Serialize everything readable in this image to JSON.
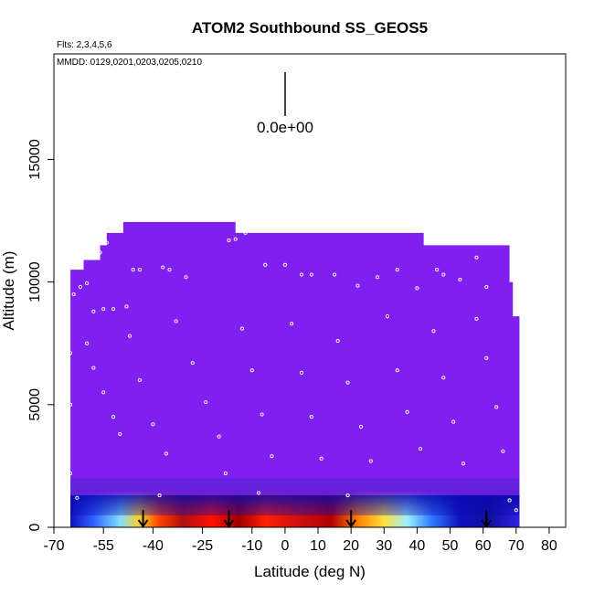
{
  "chart_data": {
    "type": "heatmap",
    "title": "ATOM2 Southbound SS_GEOS5",
    "flights_note": "Flts: 2,3,4,5,6",
    "date_note": "MMDD: 0129,0201,0203,0205,0210",
    "scale_label": "0.0e+00",
    "xlabel": "Latitude (deg N)",
    "ylabel": "Altitude (m)",
    "xlim": [
      -70,
      85
    ],
    "ylim": [
      0,
      19300
    ],
    "x_ticks": [
      -70,
      -55,
      -40,
      -25,
      -10,
      0,
      10,
      20,
      30,
      40,
      50,
      60,
      70,
      80
    ],
    "x_tick_labels": [
      "-70",
      "-55",
      "-40",
      "-25",
      "-10",
      "0",
      "10",
      "20",
      "30",
      "40",
      "50",
      "60",
      "70",
      "80"
    ],
    "y_ticks": [
      0,
      5000,
      10000,
      15000
    ],
    "y_tick_labels": [
      "0",
      "5000",
      "10000",
      "15000"
    ],
    "background_color": "#8020f0",
    "curtain_top": [
      {
        "lat": -65,
        "alt": 10500
      },
      {
        "lat": -61,
        "alt": 10900
      },
      {
        "lat": -56,
        "alt": 11500
      },
      {
        "lat": -54,
        "alt": 12000
      },
      {
        "lat": -49,
        "alt": 12450
      },
      {
        "lat": -15,
        "alt": 12000
      },
      {
        "lat": 42,
        "alt": 11500
      },
      {
        "lat": 68,
        "alt": 10000
      },
      {
        "lat": 69,
        "alt": 8600
      }
    ],
    "curtain_range": [
      -65,
      71
    ],
    "surface_band": {
      "alt_max": 1500,
      "stops": [
        {
          "lat": -65,
          "color": "#1010c0"
        },
        {
          "lat": -58,
          "color": "#3060ff"
        },
        {
          "lat": -50,
          "color": "#80e0ff"
        },
        {
          "lat": -44,
          "color": "#ffd020"
        },
        {
          "lat": -38,
          "color": "#ff4000"
        },
        {
          "lat": -31,
          "color": "#b01010"
        },
        {
          "lat": -22,
          "color": "#ff1000"
        },
        {
          "lat": -14,
          "color": "#a00000"
        },
        {
          "lat": -6,
          "color": "#ff2000"
        },
        {
          "lat": 4,
          "color": "#d01010"
        },
        {
          "lat": 14,
          "color": "#b00000"
        },
        {
          "lat": 22,
          "color": "#ff8000"
        },
        {
          "lat": 30,
          "color": "#ffe040"
        },
        {
          "lat": 37,
          "color": "#a0f0ff"
        },
        {
          "lat": 44,
          "color": "#3080ff"
        },
        {
          "lat": 53,
          "color": "#1010c0"
        },
        {
          "lat": 62,
          "color": "#1010a0"
        },
        {
          "lat": 71,
          "color": "#3020e0"
        }
      ]
    },
    "arrows": [
      -43,
      -17,
      20,
      61
    ],
    "flight_track": [
      {
        "lat": -64,
        "alt": 9500
      },
      {
        "lat": -62,
        "alt": 9800
      },
      {
        "lat": -60,
        "alt": 9950
      },
      {
        "lat": -56,
        "alt": 11200
      },
      {
        "lat": -54,
        "alt": 11600
      },
      {
        "lat": -52,
        "alt": 12100
      },
      {
        "lat": -50,
        "alt": 12300
      },
      {
        "lat": -46,
        "alt": 10500
      },
      {
        "lat": -44,
        "alt": 10500
      },
      {
        "lat": -37,
        "alt": 10600
      },
      {
        "lat": -35,
        "alt": 10500
      },
      {
        "lat": -30,
        "alt": 10200
      },
      {
        "lat": -17,
        "alt": 11700
      },
      {
        "lat": -15,
        "alt": 11750
      },
      {
        "lat": -12,
        "alt": 12000
      },
      {
        "lat": -6,
        "alt": 10700
      },
      {
        "lat": 0,
        "alt": 10700
      },
      {
        "lat": 5,
        "alt": 10300
      },
      {
        "lat": 8,
        "alt": 10300
      },
      {
        "lat": 15,
        "alt": 10300
      },
      {
        "lat": 22,
        "alt": 9850
      },
      {
        "lat": 28,
        "alt": 10200
      },
      {
        "lat": 34,
        "alt": 10500
      },
      {
        "lat": 40,
        "alt": 9750
      },
      {
        "lat": 46,
        "alt": 10500
      },
      {
        "lat": 48,
        "alt": 10300
      },
      {
        "lat": 53,
        "alt": 10100
      },
      {
        "lat": 58,
        "alt": 11000
      },
      {
        "lat": 61,
        "alt": 9800
      },
      {
        "lat": -58,
        "alt": 8800
      },
      {
        "lat": -55,
        "alt": 8900
      },
      {
        "lat": -52,
        "alt": 8900
      },
      {
        "lat": -48,
        "alt": 9000
      },
      {
        "lat": -60,
        "alt": 7500
      },
      {
        "lat": -58,
        "alt": 6500
      },
      {
        "lat": -55,
        "alt": 5500
      },
      {
        "lat": -52,
        "alt": 4500
      },
      {
        "lat": -50,
        "alt": 3800
      },
      {
        "lat": -47,
        "alt": 7800
      },
      {
        "lat": -44,
        "alt": 6000
      },
      {
        "lat": -40,
        "alt": 4200
      },
      {
        "lat": -36,
        "alt": 3000
      },
      {
        "lat": -33,
        "alt": 8400
      },
      {
        "lat": -28,
        "alt": 6700
      },
      {
        "lat": -24,
        "alt": 5100
      },
      {
        "lat": -20,
        "alt": 3700
      },
      {
        "lat": -18,
        "alt": 2200
      },
      {
        "lat": -13,
        "alt": 8100
      },
      {
        "lat": -10,
        "alt": 6400
      },
      {
        "lat": -7,
        "alt": 4600
      },
      {
        "lat": -4,
        "alt": 2900
      },
      {
        "lat": 2,
        "alt": 8300
      },
      {
        "lat": 5,
        "alt": 6300
      },
      {
        "lat": 8,
        "alt": 4500
      },
      {
        "lat": 11,
        "alt": 2800
      },
      {
        "lat": 16,
        "alt": 7600
      },
      {
        "lat": 19,
        "alt": 5900
      },
      {
        "lat": 23,
        "alt": 4100
      },
      {
        "lat": 26,
        "alt": 2700
      },
      {
        "lat": 31,
        "alt": 8600
      },
      {
        "lat": 34,
        "alt": 6400
      },
      {
        "lat": 37,
        "alt": 4700
      },
      {
        "lat": 41,
        "alt": 3200
      },
      {
        "lat": 45,
        "alt": 8000
      },
      {
        "lat": 48,
        "alt": 6100
      },
      {
        "lat": 51,
        "alt": 4300
      },
      {
        "lat": 54,
        "alt": 2600
      },
      {
        "lat": 58,
        "alt": 8500
      },
      {
        "lat": 61,
        "alt": 6900
      },
      {
        "lat": 64,
        "alt": 4900
      },
      {
        "lat": 66,
        "alt": 3100
      },
      {
        "lat": -65,
        "alt": 2200
      },
      {
        "lat": -65,
        "alt": 5000
      },
      {
        "lat": -65,
        "alt": 7100
      },
      {
        "lat": -63,
        "alt": 1200
      },
      {
        "lat": -38,
        "alt": 1300
      },
      {
        "lat": -8,
        "alt": 1400
      },
      {
        "lat": 19,
        "alt": 1300
      },
      {
        "lat": 68,
        "alt": 1100
      },
      {
        "lat": 70,
        "alt": 700
      }
    ]
  }
}
